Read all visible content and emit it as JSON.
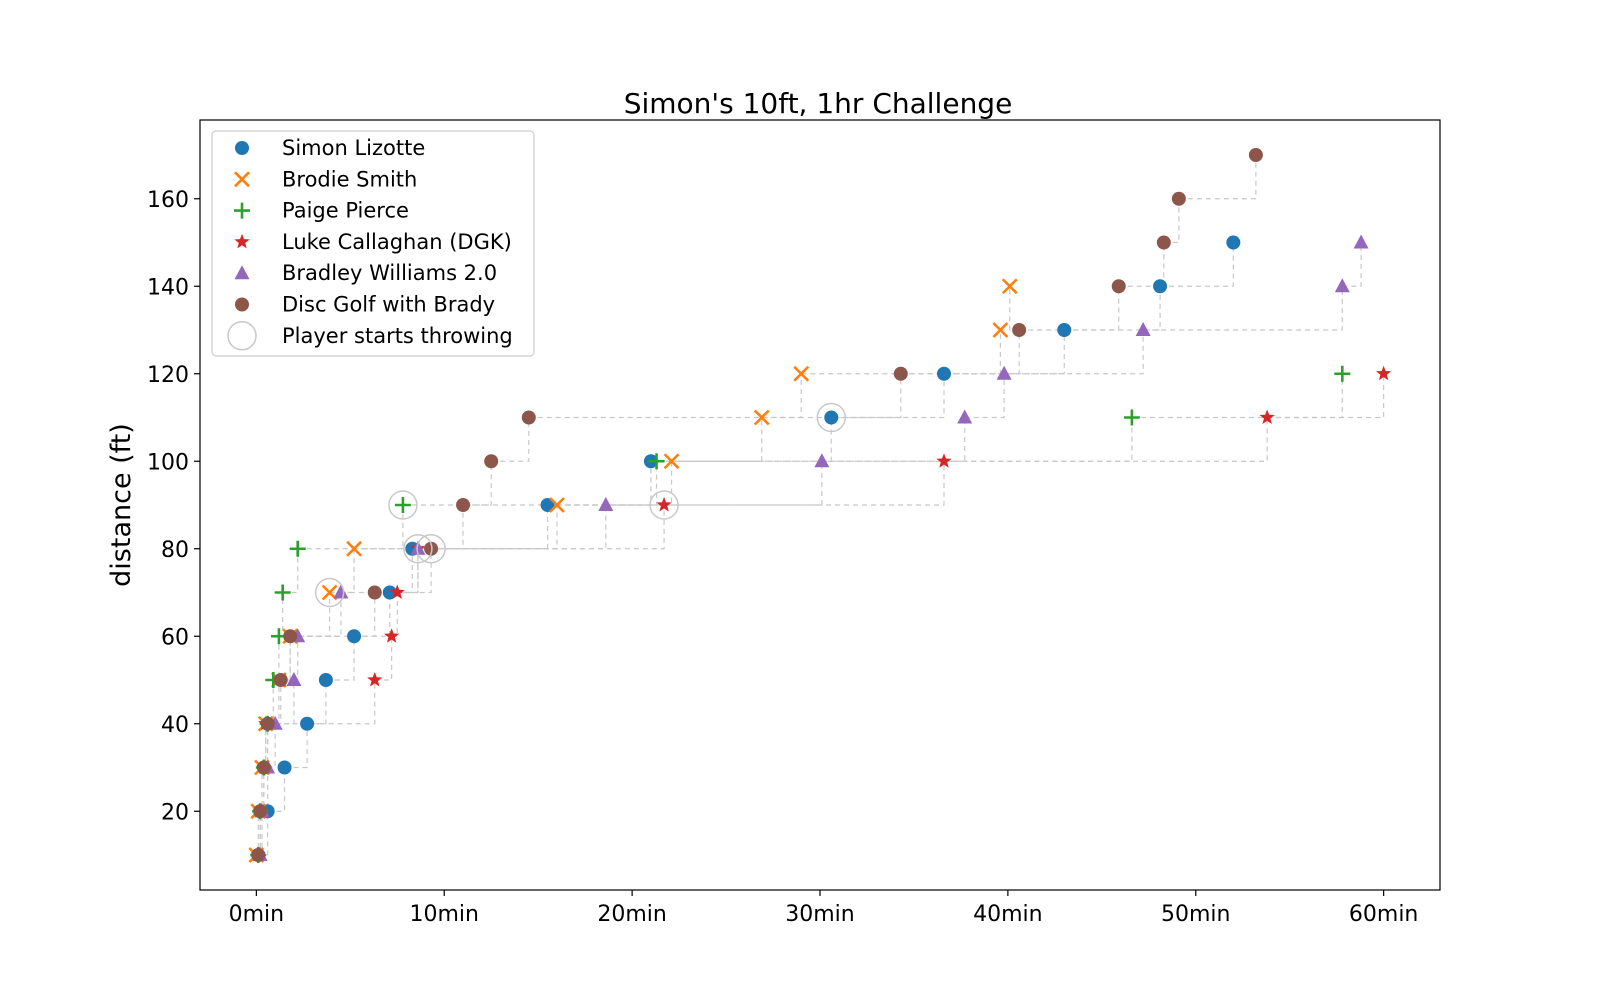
{
  "chart_data": {
    "type": "scatter",
    "title": "Simon's 10ft, 1hr Challenge",
    "xlabel": "",
    "ylabel": "distance (ft)",
    "xlim": [
      -3,
      63
    ],
    "ylim": [
      2,
      178
    ],
    "x_ticks": [
      0,
      10,
      20,
      30,
      40,
      50,
      60
    ],
    "x_tick_labels": [
      "0min",
      "10min",
      "20min",
      "30min",
      "40min",
      "50min",
      "60min"
    ],
    "y_ticks": [
      20,
      40,
      60,
      80,
      100,
      120,
      140,
      160
    ],
    "y_tick_labels": [
      "20",
      "40",
      "60",
      "80",
      "100",
      "120",
      "140",
      "160"
    ],
    "legend_position": "top-left",
    "series": [
      {
        "name": "Simon Lizotte",
        "marker": "circle",
        "color": "#1f77b4",
        "points": [
          [
            0.1,
            10
          ],
          [
            0.6,
            20
          ],
          [
            1.5,
            30
          ],
          [
            2.7,
            40
          ],
          [
            3.7,
            50
          ],
          [
            5.2,
            60
          ],
          [
            7.1,
            70
          ],
          [
            8.3,
            80
          ],
          [
            15.5,
            90
          ],
          [
            21.0,
            100
          ],
          [
            30.6,
            110
          ],
          [
            36.6,
            120
          ],
          [
            43.0,
            130
          ],
          [
            48.1,
            140
          ],
          [
            52.0,
            150
          ]
        ]
      },
      {
        "name": "Brodie Smith",
        "marker": "x",
        "color": "#ff7f0e",
        "points": [
          [
            0.0,
            10
          ],
          [
            0.1,
            20
          ],
          [
            0.3,
            30
          ],
          [
            0.5,
            40
          ],
          [
            1.2,
            50
          ],
          [
            1.8,
            60
          ],
          [
            3.9,
            70
          ],
          [
            5.2,
            80
          ],
          [
            16.0,
            90
          ],
          [
            22.1,
            100
          ],
          [
            26.9,
            110
          ],
          [
            29.0,
            120
          ],
          [
            39.6,
            130
          ],
          [
            40.1,
            140
          ]
        ]
      },
      {
        "name": "Paige Pierce",
        "marker": "plus",
        "color": "#2ca02c",
        "points": [
          [
            0.1,
            10
          ],
          [
            0.2,
            20
          ],
          [
            0.4,
            30
          ],
          [
            0.6,
            40
          ],
          [
            0.9,
            50
          ],
          [
            1.2,
            60
          ],
          [
            1.4,
            70
          ],
          [
            2.2,
            80
          ],
          [
            7.8,
            90
          ],
          [
            21.3,
            100
          ],
          [
            46.6,
            110
          ],
          [
            57.8,
            120
          ]
        ]
      },
      {
        "name": "Luke Callaghan (DGK)",
        "marker": "star",
        "color": "#d62728",
        "points": [
          [
            0.1,
            10
          ],
          [
            0.2,
            20
          ],
          [
            0.4,
            30
          ],
          [
            0.5,
            40
          ],
          [
            6.3,
            50
          ],
          [
            7.2,
            60
          ],
          [
            7.5,
            70
          ],
          [
            8.6,
            80
          ],
          [
            21.7,
            90
          ],
          [
            36.6,
            100
          ],
          [
            53.8,
            110
          ],
          [
            60.0,
            120
          ]
        ]
      },
      {
        "name": "Bradley Williams 2.0",
        "marker": "triangle",
        "color": "#9467bd",
        "points": [
          [
            0.2,
            10
          ],
          [
            0.3,
            20
          ],
          [
            0.6,
            30
          ],
          [
            1.0,
            40
          ],
          [
            2.0,
            50
          ],
          [
            2.2,
            60
          ],
          [
            4.5,
            70
          ],
          [
            8.6,
            80
          ],
          [
            18.6,
            90
          ],
          [
            30.1,
            100
          ],
          [
            37.7,
            110
          ],
          [
            39.8,
            120
          ],
          [
            47.2,
            130
          ],
          [
            57.8,
            140
          ],
          [
            58.8,
            150
          ]
        ]
      },
      {
        "name": "Disc Golf with Brady",
        "marker": "circle",
        "color": "#8c564b",
        "points": [
          [
            0.1,
            10
          ],
          [
            0.2,
            20
          ],
          [
            0.4,
            30
          ],
          [
            0.6,
            40
          ],
          [
            1.3,
            50
          ],
          [
            1.8,
            60
          ],
          [
            6.3,
            70
          ],
          [
            9.3,
            80
          ],
          [
            11.0,
            90
          ],
          [
            12.5,
            100
          ],
          [
            14.5,
            110
          ],
          [
            34.3,
            120
          ],
          [
            40.6,
            130
          ],
          [
            45.9,
            140
          ],
          [
            48.3,
            150
          ],
          [
            49.1,
            160
          ],
          [
            53.2,
            170
          ]
        ]
      }
    ],
    "start_markers": {
      "name": "Player starts throwing",
      "points": [
        [
          7.8,
          90
        ],
        [
          8.6,
          80
        ],
        [
          9.3,
          80
        ],
        [
          3.9,
          70
        ],
        [
          21.7,
          90
        ],
        [
          30.6,
          110
        ]
      ]
    }
  }
}
